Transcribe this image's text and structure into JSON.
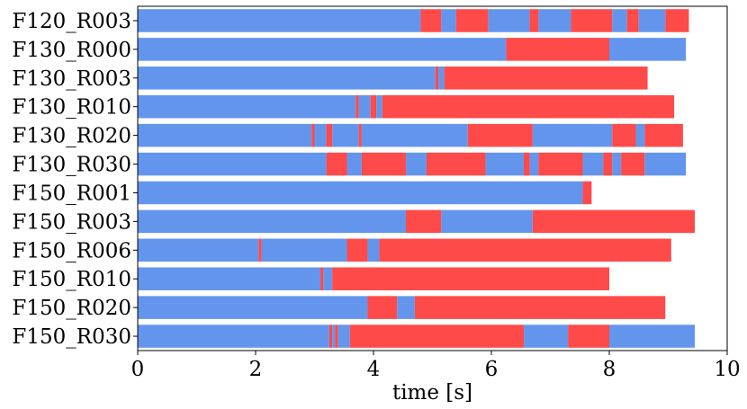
{
  "chart_data": {
    "type": "bar",
    "orientation": "horizontal-timeline",
    "title": "",
    "xlabel": "time [s]",
    "ylabel": "",
    "xlim": [
      0,
      10
    ],
    "xticks": [
      0,
      2,
      4,
      6,
      8,
      10
    ],
    "grid": false,
    "legend": "none",
    "colors": {
      "blue": "#6495ED",
      "red": "#FF4A4A"
    },
    "categories": [
      "F120_R003",
      "F130_R000",
      "F130_R003",
      "F130_R010",
      "F130_R020",
      "F130_R030",
      "F150_R001",
      "F150_R003",
      "F150_R006",
      "F150_R010",
      "F150_R020",
      "F150_R030"
    ],
    "rows": [
      {
        "label": "F120_R003",
        "segments": [
          [
            0,
            4.8,
            "blue"
          ],
          [
            4.8,
            5.15,
            "red"
          ],
          [
            5.15,
            5.4,
            "blue"
          ],
          [
            5.4,
            5.95,
            "red"
          ],
          [
            5.95,
            6.65,
            "blue"
          ],
          [
            6.65,
            6.8,
            "red"
          ],
          [
            6.8,
            7.35,
            "blue"
          ],
          [
            7.35,
            8.05,
            "red"
          ],
          [
            8.05,
            8.3,
            "blue"
          ],
          [
            8.3,
            8.5,
            "red"
          ],
          [
            8.5,
            8.95,
            "blue"
          ],
          [
            8.95,
            9.35,
            "red"
          ]
        ]
      },
      {
        "label": "F130_R000",
        "segments": [
          [
            0,
            6.25,
            "blue"
          ],
          [
            6.25,
            8.0,
            "red"
          ],
          [
            8.0,
            9.3,
            "blue"
          ]
        ]
      },
      {
        "label": "F130_R003",
        "segments": [
          [
            0,
            5.05,
            "blue"
          ],
          [
            5.05,
            5.1,
            "red"
          ],
          [
            5.1,
            5.2,
            "blue"
          ],
          [
            5.2,
            8.65,
            "red"
          ]
        ]
      },
      {
        "label": "F130_R010",
        "segments": [
          [
            0,
            3.7,
            "blue"
          ],
          [
            3.7,
            3.75,
            "red"
          ],
          [
            3.75,
            3.95,
            "blue"
          ],
          [
            3.95,
            4.05,
            "red"
          ],
          [
            4.05,
            4.15,
            "blue"
          ],
          [
            4.15,
            9.1,
            "red"
          ]
        ]
      },
      {
        "label": "F130_R020",
        "segments": [
          [
            0,
            2.95,
            "blue"
          ],
          [
            2.95,
            3.0,
            "red"
          ],
          [
            3.0,
            3.2,
            "blue"
          ],
          [
            3.2,
            3.3,
            "red"
          ],
          [
            3.3,
            3.75,
            "blue"
          ],
          [
            3.75,
            3.8,
            "red"
          ],
          [
            3.8,
            5.6,
            "blue"
          ],
          [
            5.6,
            6.7,
            "red"
          ],
          [
            6.7,
            8.05,
            "blue"
          ],
          [
            8.05,
            8.45,
            "red"
          ],
          [
            8.45,
            8.6,
            "blue"
          ],
          [
            8.6,
            9.25,
            "red"
          ]
        ]
      },
      {
        "label": "F130_R030",
        "segments": [
          [
            0,
            3.2,
            "blue"
          ],
          [
            3.2,
            3.55,
            "red"
          ],
          [
            3.55,
            3.8,
            "blue"
          ],
          [
            3.8,
            4.55,
            "red"
          ],
          [
            4.55,
            4.9,
            "blue"
          ],
          [
            4.9,
            5.9,
            "red"
          ],
          [
            5.9,
            6.55,
            "blue"
          ],
          [
            6.55,
            6.65,
            "red"
          ],
          [
            6.65,
            6.8,
            "blue"
          ],
          [
            6.8,
            7.55,
            "red"
          ],
          [
            7.55,
            7.9,
            "blue"
          ],
          [
            7.9,
            8.05,
            "red"
          ],
          [
            8.05,
            8.2,
            "blue"
          ],
          [
            8.2,
            8.6,
            "red"
          ],
          [
            8.6,
            9.3,
            "blue"
          ]
        ]
      },
      {
        "label": "F150_R001",
        "segments": [
          [
            0,
            7.55,
            "blue"
          ],
          [
            7.55,
            7.7,
            "red"
          ]
        ]
      },
      {
        "label": "F150_R003",
        "segments": [
          [
            0,
            4.55,
            "blue"
          ],
          [
            4.55,
            5.15,
            "red"
          ],
          [
            5.15,
            6.7,
            "blue"
          ],
          [
            6.7,
            9.45,
            "red"
          ]
        ]
      },
      {
        "label": "F150_R006",
        "segments": [
          [
            0,
            2.05,
            "blue"
          ],
          [
            2.05,
            2.1,
            "red"
          ],
          [
            2.1,
            3.55,
            "blue"
          ],
          [
            3.55,
            3.9,
            "red"
          ],
          [
            3.9,
            4.1,
            "blue"
          ],
          [
            4.1,
            9.05,
            "red"
          ]
        ]
      },
      {
        "label": "F150_R010",
        "segments": [
          [
            0,
            3.1,
            "blue"
          ],
          [
            3.1,
            3.15,
            "red"
          ],
          [
            3.15,
            3.3,
            "blue"
          ],
          [
            3.3,
            8.0,
            "red"
          ]
        ]
      },
      {
        "label": "F150_R020",
        "segments": [
          [
            0,
            3.9,
            "blue"
          ],
          [
            3.9,
            4.4,
            "red"
          ],
          [
            4.4,
            4.7,
            "blue"
          ],
          [
            4.7,
            8.95,
            "red"
          ]
        ]
      },
      {
        "label": "F150_R030",
        "segments": [
          [
            0,
            3.25,
            "blue"
          ],
          [
            3.25,
            3.3,
            "red"
          ],
          [
            3.3,
            3.35,
            "blue"
          ],
          [
            3.35,
            3.4,
            "red"
          ],
          [
            3.4,
            3.6,
            "blue"
          ],
          [
            3.6,
            6.55,
            "red"
          ],
          [
            6.55,
            7.3,
            "blue"
          ],
          [
            7.3,
            8.0,
            "red"
          ],
          [
            8.0,
            9.45,
            "blue"
          ]
        ]
      }
    ]
  }
}
